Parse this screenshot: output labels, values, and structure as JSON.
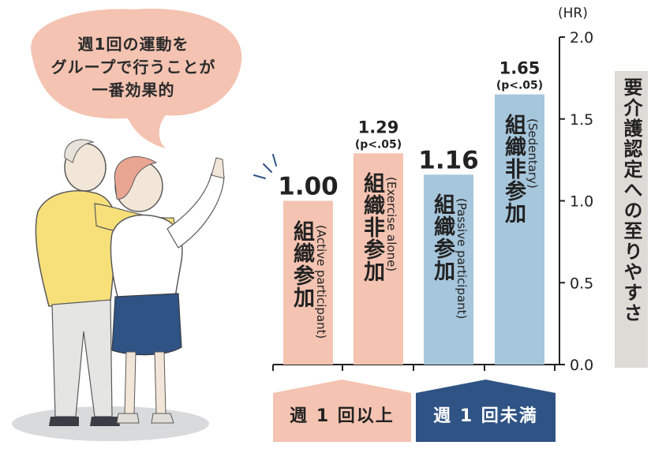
{
  "callout": {
    "lines": [
      "週1回の運動を",
      "グループで行うことが",
      "一番効果的"
    ]
  },
  "chart_data": {
    "type": "bar",
    "categories": [
      "組織参加 (Active participant)",
      "組織非参加 (Exercise alone)",
      "組織参加 (Passive participant)",
      "組織非参加 (Sedentary)"
    ],
    "values": [
      1.0,
      1.29,
      1.16,
      1.65
    ],
    "bars": [
      {
        "label_jp": "組織参加",
        "label_en": "(Active participant)",
        "value_label": "1.00",
        "sig": "",
        "color": "#f4c3b1"
      },
      {
        "label_jp": "組織非参加",
        "label_en": "(Exercise alone)",
        "value_label": "1.29",
        "sig": "(p<.05)",
        "color": "#f4c3b1"
      },
      {
        "label_jp": "組織参加",
        "label_en": "(Passive participant)",
        "value_label": "1.16",
        "sig": "",
        "color": "#a6c6dc"
      },
      {
        "label_jp": "組織非参加",
        "label_en": "(Sedentary)",
        "value_label": "1.65",
        "sig": "(p<.05)",
        "color": "#a6c6dc"
      }
    ],
    "groups": [
      {
        "label": "週 1 回以上",
        "color": "#f4c3b1",
        "text_color": "#222222"
      },
      {
        "label": "週 1 回未満",
        "color": "#2f5384",
        "text_color": "#ffffff"
      }
    ],
    "yaxis": {
      "unit": "(HR)",
      "label": "要介護認定への至りやすさ",
      "ticks": [
        "0.0",
        "0.5",
        "1.0",
        "1.5",
        "2.0"
      ],
      "ylim": [
        0,
        2.0
      ]
    },
    "grid": false,
    "accent_color": "#2f5384"
  }
}
